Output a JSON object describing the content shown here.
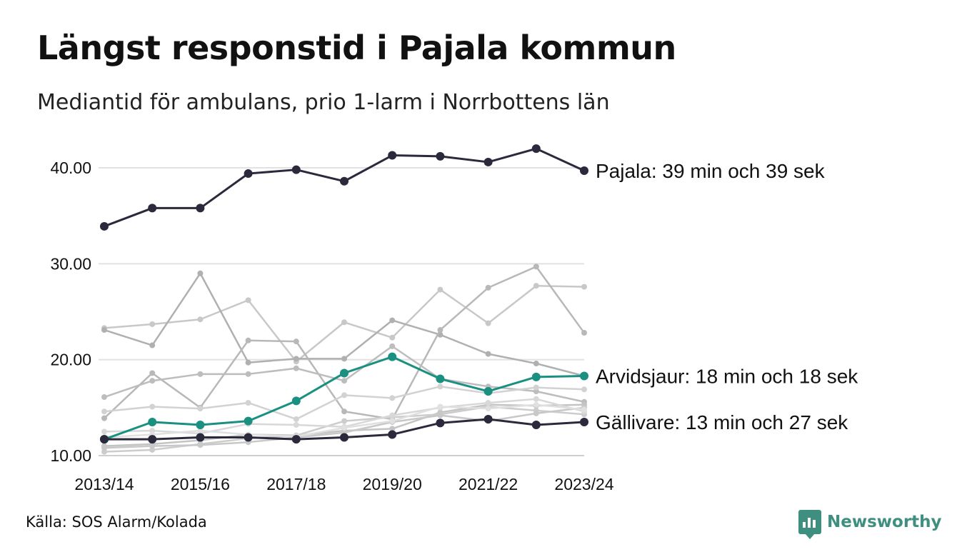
{
  "title": "Längst responstid i Pajala kommun",
  "subtitle": "Mediantid för ambulans, prio 1-larm i Norrbottens län",
  "source": "Källa: SOS Alarm/Kolada",
  "brand": {
    "name": "Newsworthy",
    "icon": "newsworthy-logo-icon",
    "color": "#3f8f80"
  },
  "chart_data": {
    "type": "line",
    "xlabel": "",
    "ylabel": "",
    "ylim": [
      10,
      42
    ],
    "yticks": [
      10,
      20,
      30,
      40
    ],
    "ytick_labels": [
      "10.00",
      "20.00",
      "30.00",
      "40.00"
    ],
    "x": [
      "2013/14",
      "2014/15",
      "2015/16",
      "2016/17",
      "2017/18",
      "2018/19",
      "2019/20",
      "2020/21",
      "2021/22",
      "2022/23",
      "2023/24"
    ],
    "xtick_labels": [
      "2013/14",
      "2015/16",
      "2017/18",
      "2019/20",
      "2021/22",
      "2023/24"
    ],
    "grid": "horizontal",
    "legend": "none",
    "series": [
      {
        "name": "",
        "color": "#c8c8c8",
        "values": [
          23.3,
          23.7,
          24.2,
          26.2,
          19.8,
          23.9,
          22.3,
          27.3,
          23.8,
          27.7,
          27.6
        ]
      },
      {
        "name": "",
        "color": "#b0b0b0",
        "values": [
          23.1,
          21.5,
          29.0,
          19.7,
          20.1,
          20.1,
          24.1,
          22.6,
          20.6,
          19.6,
          18.3
        ]
      },
      {
        "name": "",
        "color": "#b8b8b8",
        "values": [
          13.9,
          18.6,
          15.0,
          22.0,
          21.9,
          14.6,
          13.8,
          23.1,
          27.5,
          29.7,
          22.8
        ]
      },
      {
        "name": "",
        "color": "#bdbdbd",
        "values": [
          16.1,
          17.8,
          18.5,
          18.5,
          19.1,
          17.8,
          21.4,
          18.0,
          17.2,
          16.7,
          15.6
        ]
      },
      {
        "name": "",
        "color": "#d2d2d2",
        "values": [
          14.6,
          15.1,
          14.9,
          15.5,
          13.8,
          16.3,
          16.0,
          17.2,
          16.5,
          17.1,
          16.9
        ]
      },
      {
        "name": "",
        "color": "#c4c4c4",
        "values": [
          11.0,
          11.2,
          11.6,
          12.2,
          12.1,
          12.6,
          12.8,
          14.5,
          15.3,
          15.2,
          15.3
        ]
      },
      {
        "name": "",
        "color": "#cccccc",
        "values": [
          10.4,
          10.6,
          11.2,
          11.8,
          12.1,
          13.6,
          14.0,
          14.3,
          15.1,
          14.7,
          14.3
        ]
      },
      {
        "name": "",
        "color": "#c8c8c8",
        "values": [
          10.8,
          11.0,
          11.1,
          11.4,
          11.9,
          12.4,
          13.5,
          14.2,
          13.6,
          14.4,
          15.0
        ]
      },
      {
        "name": "",
        "color": "#d8d8d8",
        "values": [
          12.5,
          12.6,
          12.3,
          13.3,
          13.2,
          13.0,
          14.2,
          15.0,
          15.5,
          15.9,
          14.6
        ]
      },
      {
        "name": "",
        "color": "#e0e0e0",
        "values": [
          11.9,
          12.2,
          12.6,
          12.2,
          12.0,
          12.9,
          13.6,
          15.1,
          14.9,
          15.3,
          14.8
        ]
      },
      {
        "name": "Arvidsjaur",
        "color": "#1a9080",
        "emphasis": true,
        "label": "Arvidsjaur: 18 min och 18 sek",
        "values": [
          11.7,
          13.5,
          13.2,
          13.6,
          15.7,
          18.6,
          20.3,
          18.0,
          16.7,
          18.2,
          18.3
        ]
      },
      {
        "name": "Gällivare",
        "color": "#2a2a3c",
        "emphasis": true,
        "label": "Gällivare: 13 min och 27 sek",
        "values": [
          11.7,
          11.7,
          11.9,
          11.9,
          11.7,
          11.9,
          12.2,
          13.4,
          13.8,
          13.2,
          13.5
        ]
      },
      {
        "name": "Pajala",
        "color": "#2a2a3c",
        "emphasis": true,
        "label": "Pajala: 39 min och 39 sek",
        "values": [
          33.9,
          35.8,
          35.8,
          39.4,
          39.8,
          38.6,
          41.3,
          41.2,
          40.6,
          42.0,
          39.7
        ]
      }
    ]
  }
}
